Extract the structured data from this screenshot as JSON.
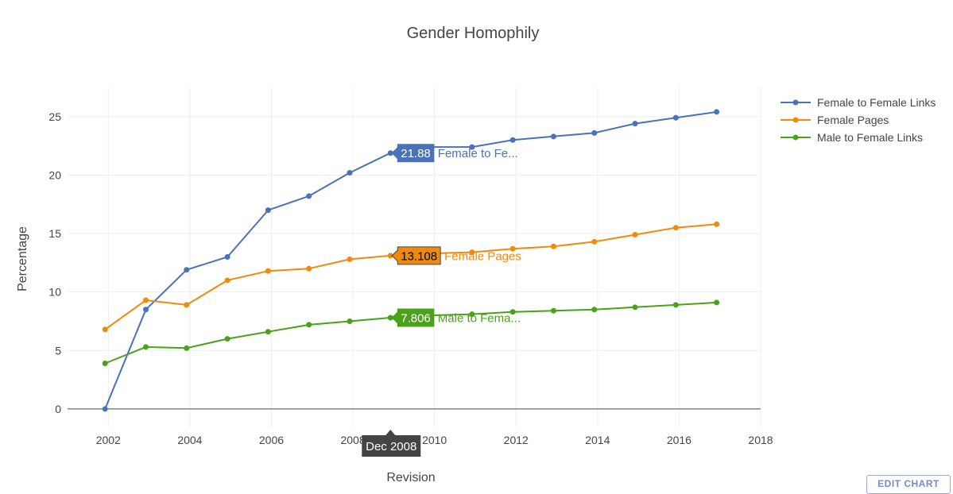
{
  "chart_data": {
    "type": "line",
    "title": "Gender Homophily",
    "xlabel": "Revision",
    "ylabel": "Percentage",
    "xlim": [
      2001,
      2018
    ],
    "ylim": [
      -1.5,
      27.5
    ],
    "x_ticks": [
      2002,
      2004,
      2006,
      2008,
      2010,
      2012,
      2014,
      2016,
      2018
    ],
    "y_ticks": [
      0,
      5,
      10,
      15,
      20,
      25
    ],
    "grid": true,
    "legend_position": "top-right",
    "x": [
      2001.92,
      2002.92,
      2003.92,
      2004.92,
      2005.92,
      2006.92,
      2007.92,
      2008.92,
      2009.92,
      2010.92,
      2011.92,
      2012.92,
      2013.92,
      2014.92,
      2015.92,
      2016.92
    ],
    "series": [
      {
        "name": "Female to Female Links",
        "color": "#4a72b8",
        "values": [
          0,
          8.5,
          11.9,
          13.0,
          17.0,
          18.2,
          20.2,
          21.88,
          22.4,
          22.4,
          23.0,
          23.3,
          23.6,
          24.4,
          24.9,
          25.4
        ]
      },
      {
        "name": "Female Pages",
        "color": "#f08a0b",
        "values": [
          6.8,
          9.3,
          8.9,
          11.0,
          11.8,
          12.0,
          12.8,
          13.108,
          13.3,
          13.4,
          13.7,
          13.9,
          14.3,
          14.9,
          15.5,
          15.8
        ]
      },
      {
        "name": "Male to Female Links",
        "color": "#4aa11a",
        "values": [
          3.9,
          5.3,
          5.2,
          6.0,
          6.6,
          7.2,
          7.5,
          7.806,
          8.0,
          8.1,
          8.3,
          8.4,
          8.5,
          8.7,
          8.9,
          9.1
        ]
      }
    ],
    "hover": {
      "index": 7,
      "x_label": "Dec 2008",
      "labels": [
        {
          "value": "21.88",
          "name": "Female to Fe..."
        },
        {
          "value": "13.108",
          "name": "Female Pages"
        },
        {
          "value": "7.806",
          "name": "Male to Fema..."
        }
      ]
    }
  },
  "edit_chart_label": "EDIT CHART"
}
